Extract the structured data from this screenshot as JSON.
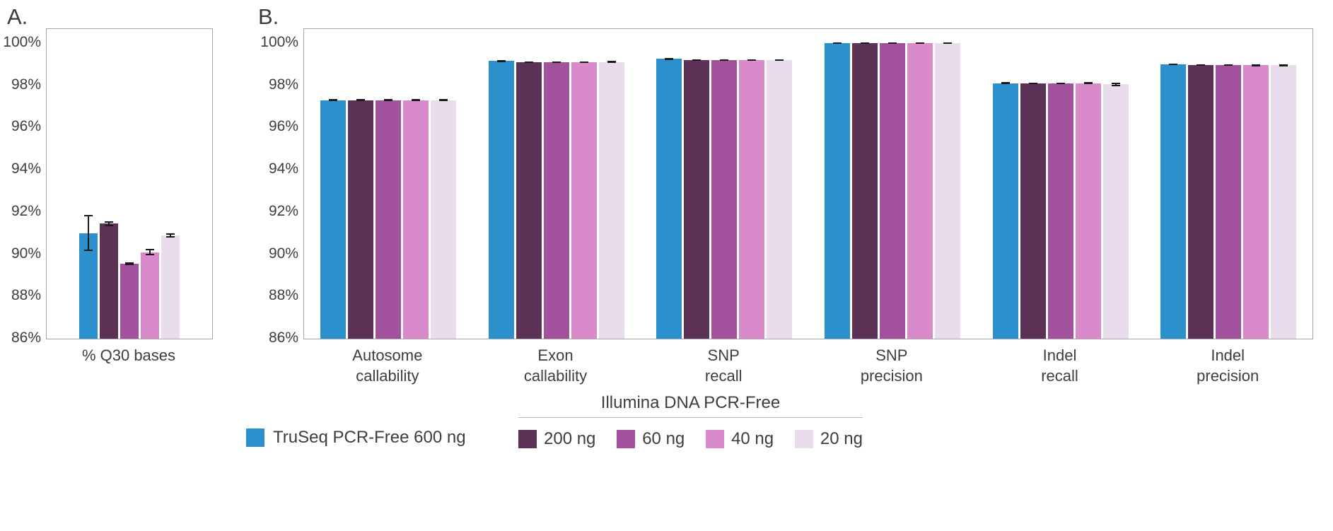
{
  "panels": {
    "a": "A.",
    "b": "B."
  },
  "colors": {
    "axis_border": "#a6a6a6",
    "text": "#3d3d3d",
    "error_bar": "#1a1a1a",
    "blue": "#2b90cc",
    "purple_dark": "#5b3256",
    "purple_mid": "#a2519d",
    "pink": "#d98aca",
    "lavender": "#e9dcec"
  },
  "chart_data": [
    {
      "id": "chart-a",
      "type": "bar",
      "panel": "A",
      "categories": [
        "% Q30 bases"
      ],
      "ylim": [
        86,
        100
      ],
      "ytick_labels": [
        "86%",
        "88%",
        "90%",
        "92%",
        "94%",
        "96%",
        "98%",
        "100%"
      ],
      "grid": false,
      "legend_position": "bottom",
      "series": [
        {
          "name": "TruSeq PCR-Free 600 ng",
          "color": "#2b90cc",
          "values": [
            91.0
          ],
          "errors": [
            0.85
          ]
        },
        {
          "name": "200 ng",
          "color": "#5b3256",
          "values": [
            91.45
          ],
          "errors": [
            0.12
          ]
        },
        {
          "name": "60 ng",
          "color": "#a2519d",
          "values": [
            89.55
          ],
          "errors": [
            0.06
          ]
        },
        {
          "name": "40 ng",
          "color": "#d98aca",
          "values": [
            90.1
          ],
          "errors": [
            0.15
          ]
        },
        {
          "name": "20 ng",
          "color": "#e9dcec",
          "values": [
            90.9
          ],
          "errors": [
            0.1
          ]
        }
      ]
    },
    {
      "id": "chart-b",
      "type": "bar",
      "panel": "B",
      "categories": [
        "Autosome\ncallability",
        "Exon\ncallability",
        "SNP\nrecall",
        "SNP\nprecision",
        "Indel\nrecall",
        "Indel\nprecision"
      ],
      "ylim": [
        86,
        100
      ],
      "ytick_labels": [
        "86%",
        "88%",
        "90%",
        "92%",
        "94%",
        "96%",
        "98%",
        "100%"
      ],
      "grid": false,
      "legend_position": "bottom",
      "series": [
        {
          "name": "TruSeq PCR-Free 600 ng",
          "color": "#2b90cc",
          "values": [
            97.3,
            99.15,
            99.25,
            100.0,
            98.1,
            99.0
          ],
          "errors": [
            0.05,
            0.04,
            0.04,
            0.02,
            0.05,
            0.04
          ]
        },
        {
          "name": "200 ng",
          "color": "#5b3256",
          "values": [
            97.3,
            99.1,
            99.2,
            100.0,
            98.1,
            98.95
          ],
          "errors": [
            0.04,
            0.03,
            0.03,
            0.02,
            0.04,
            0.03
          ]
        },
        {
          "name": "60 ng",
          "color": "#a2519d",
          "values": [
            97.3,
            99.1,
            99.2,
            100.0,
            98.1,
            98.95
          ],
          "errors": [
            0.04,
            0.03,
            0.03,
            0.02,
            0.04,
            0.03
          ]
        },
        {
          "name": "40 ng",
          "color": "#d98aca",
          "values": [
            97.3,
            99.1,
            99.2,
            100.0,
            98.1,
            98.95
          ],
          "errors": [
            0.05,
            0.04,
            0.04,
            0.02,
            0.05,
            0.04
          ]
        },
        {
          "name": "20 ng",
          "color": "#e9dcec",
          "values": [
            97.3,
            99.1,
            99.2,
            100.0,
            98.05,
            98.95
          ],
          "errors": [
            0.06,
            0.05,
            0.04,
            0.03,
            0.08,
            0.05
          ]
        }
      ]
    }
  ],
  "legend": {
    "truseq": {
      "label": "TruSeq PCR-Free 600 ng",
      "color": "#2b90cc"
    },
    "group": {
      "title": "Illumina DNA PCR-Free",
      "items": [
        {
          "label": "200 ng",
          "color": "#5b3256"
        },
        {
          "label": "60 ng",
          "color": "#a2519d"
        },
        {
          "label": "40 ng",
          "color": "#d98aca"
        },
        {
          "label": "20 ng",
          "color": "#e9dcec"
        }
      ]
    }
  }
}
